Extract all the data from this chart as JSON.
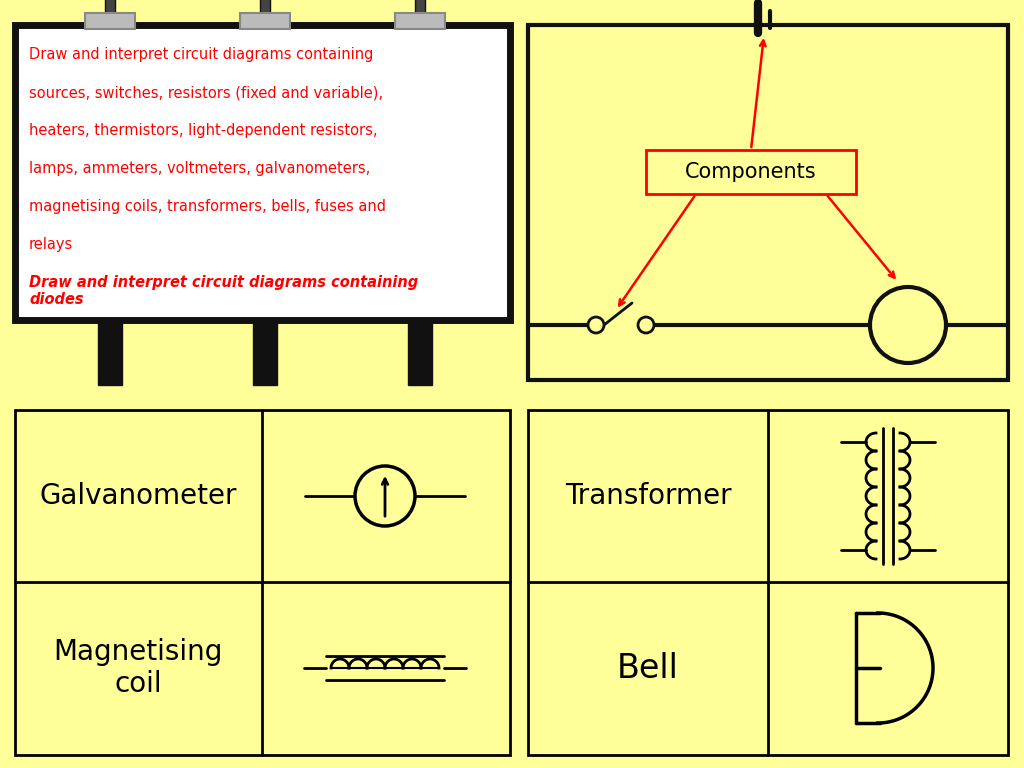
{
  "bg_color": "#FFFF99",
  "text_lines_normal": [
    "Draw and interpret circuit diagrams containing",
    "sources, switches, resistors (fixed and variable),",
    "heaters, thermistors, light-dependent resistors,",
    "lamps, ammeters, voltmeters, galvanometers,",
    "magnetising coils, transformers, bells, fuses and",
    "relays"
  ],
  "text_bold_italic": "Draw and interpret circuit diagrams containing\ndiodes",
  "components_label": "Components",
  "galvanometer_label": "Galvanometer",
  "magnetising_coil_label": "Magnetising\ncoil",
  "transformer_label": "Transformer",
  "bell_label": "Bell",
  "red": "#FF0000",
  "black": "#000000",
  "white": "#FFFFFF",
  "dark_gray": "#222222",
  "pole_color": "#111111",
  "light_housing": "#BBBBBB",
  "light_bolt": "#555555"
}
